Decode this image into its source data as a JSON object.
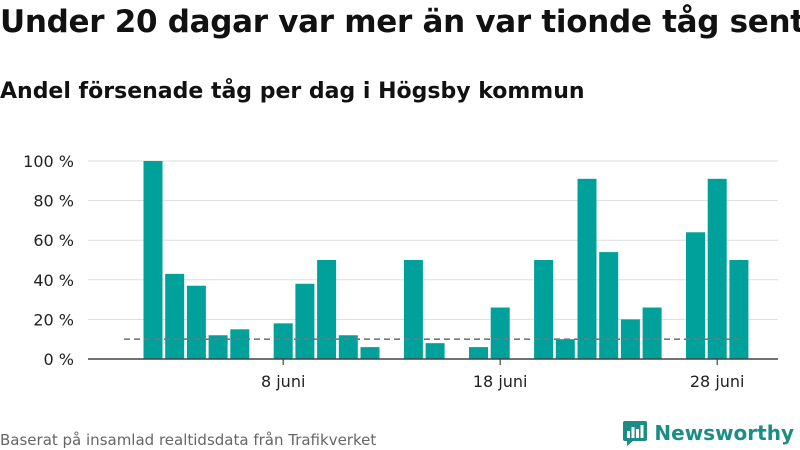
{
  "header": {
    "title": "Under 20 dagar var mer än var tionde tåg sent",
    "subtitle": "Andel försenade tåg per dag i Högsby kommun"
  },
  "footer": {
    "source": "Baserat på insamlad realtidsdata från Trafikverket",
    "brand": "Newsworthy"
  },
  "colors": {
    "bar": "#00a19a",
    "grid": "#dddddd",
    "reference": "#777777",
    "brand": "#1c8c86"
  },
  "chart_data": {
    "type": "bar",
    "x_unit": "day of June",
    "x": [
      1,
      2,
      3,
      4,
      5,
      6,
      7,
      8,
      9,
      10,
      11,
      12,
      13,
      14,
      15,
      16,
      17,
      18,
      19,
      20,
      21,
      22,
      23,
      24,
      25,
      26,
      27,
      28,
      29,
      30
    ],
    "values": [
      null,
      100,
      43,
      37,
      12,
      15,
      null,
      18,
      38,
      50,
      12,
      6,
      null,
      50,
      8,
      null,
      6,
      26,
      null,
      50,
      10,
      91,
      54,
      20,
      26,
      null,
      64,
      91,
      50,
      null
    ],
    "title": "Under 20 dagar var mer än var tionde tåg sent",
    "subtitle": "Andel försenade tåg per dag i Högsby kommun",
    "xlabel": "",
    "ylabel": "",
    "ylim": [
      0,
      100
    ],
    "yticks": [
      {
        "value": 0,
        "label": "0 %"
      },
      {
        "value": 20,
        "label": "20 %"
      },
      {
        "value": 40,
        "label": "40 %"
      },
      {
        "value": 60,
        "label": "60 %"
      },
      {
        "value": 80,
        "label": "80 %"
      },
      {
        "value": 100,
        "label": "100 %"
      }
    ],
    "xticks": [
      {
        "value": 8,
        "label": "8 juni"
      },
      {
        "value": 18,
        "label": "18 juni"
      },
      {
        "value": 28,
        "label": "28 juni"
      }
    ],
    "reference_line": {
      "value": 10,
      "style": "dashed"
    },
    "grid": true,
    "legend": "none"
  }
}
